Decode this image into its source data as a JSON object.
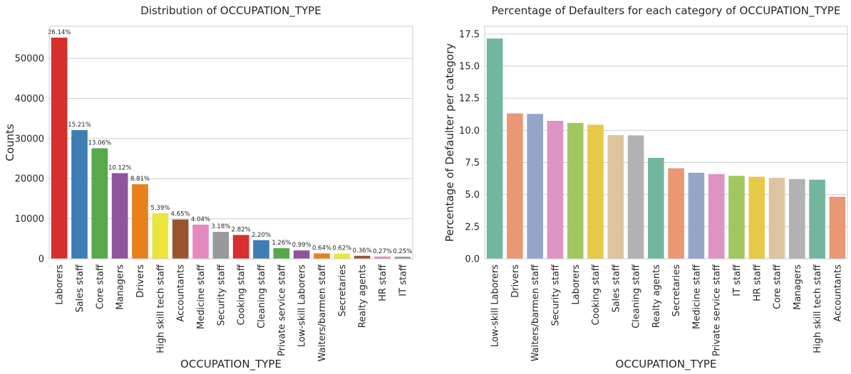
{
  "chart_data": [
    {
      "type": "bar",
      "title": "Distribution of OCCUPATION_TYPE",
      "xlabel": "OCCUPATION_TYPE",
      "ylabel": "Counts",
      "ylim": [
        0,
        58000
      ],
      "yticks": [
        0,
        10000,
        20000,
        30000,
        40000,
        50000
      ],
      "grid": true,
      "categories": [
        "Laborers",
        "Sales staff",
        "Core staff",
        "Managers",
        "Drivers",
        "High skill tech staff",
        "Accountants",
        "Medicine staff",
        "Security staff",
        "Cooking staff",
        "Cleaning staff",
        "Private service staff",
        "Low-skill Laborers",
        "Waiters/barmen staff",
        "Secretaries",
        "Realty agents",
        "HR staff",
        "IT staff"
      ],
      "values": [
        55186,
        32102,
        27570,
        21371,
        18603,
        11380,
        9813,
        8537,
        6721,
        5946,
        4653,
        2652,
        2093,
        1348,
        1305,
        751,
        563,
        526
      ],
      "labels": [
        "26.14%",
        "15.21%",
        "13.06%",
        "10.12%",
        "8.81%",
        "5.39%",
        "4.65%",
        "4.04%",
        "3.18%",
        "2.82%",
        "2.20%",
        "1.26%",
        "0.99%",
        "0.64%",
        "0.62%",
        "0.36%",
        "0.27%",
        "0.25%"
      ],
      "colors": [
        "#d62f2f",
        "#3f7db5",
        "#59a84b",
        "#8e559d",
        "#e8801c",
        "#ebe53d",
        "#9a5430",
        "#e48ac0",
        "#999999",
        "#d62f2f",
        "#3f7db5",
        "#59a84b",
        "#8e559d",
        "#e8801c",
        "#ebe53d",
        "#9a5430",
        "#e48ac0",
        "#999999"
      ]
    },
    {
      "type": "bar",
      "title": "Percentage of Defaulters for each category of OCCUPATION_TYPE",
      "xlabel": "OCCUPATION_TYPE",
      "ylabel": "Percentage of Defaulter per category",
      "ylim": [
        0,
        18.1
      ],
      "yticks": [
        0.0,
        2.5,
        5.0,
        7.5,
        10.0,
        12.5,
        15.0,
        17.5
      ],
      "ytick_labels": [
        "0.0",
        "2.5",
        "5.0",
        "7.5",
        "10.0",
        "12.5",
        "15.0",
        "17.5"
      ],
      "grid": true,
      "categories": [
        "Low-skill Laborers",
        "Drivers",
        "Waiters/barmen staff",
        "Security staff",
        "Laborers",
        "Cooking staff",
        "Sales staff",
        "Cleaning staff",
        "Realty agents",
        "Secretaries",
        "Medicine staff",
        "Private service staff",
        "IT staff",
        "HR staff",
        "Core staff",
        "Managers",
        "High skill tech staff",
        "Accountants"
      ],
      "values": [
        17.15,
        11.32,
        11.28,
        10.74,
        10.58,
        10.44,
        9.63,
        9.61,
        7.86,
        7.05,
        6.7,
        6.6,
        6.46,
        6.39,
        6.3,
        6.21,
        6.16,
        4.83
      ],
      "colors": [
        "#72b69f",
        "#e99775",
        "#94a5c8",
        "#dd94c4",
        "#a2c761",
        "#e7c94a",
        "#dcc59e",
        "#b2b2b2",
        "#72b69f",
        "#e99775",
        "#94a5c8",
        "#dd94c4",
        "#a2c761",
        "#e7c94a",
        "#dcc59e",
        "#b2b2b2",
        "#72b69f",
        "#e99775"
      ]
    }
  ]
}
